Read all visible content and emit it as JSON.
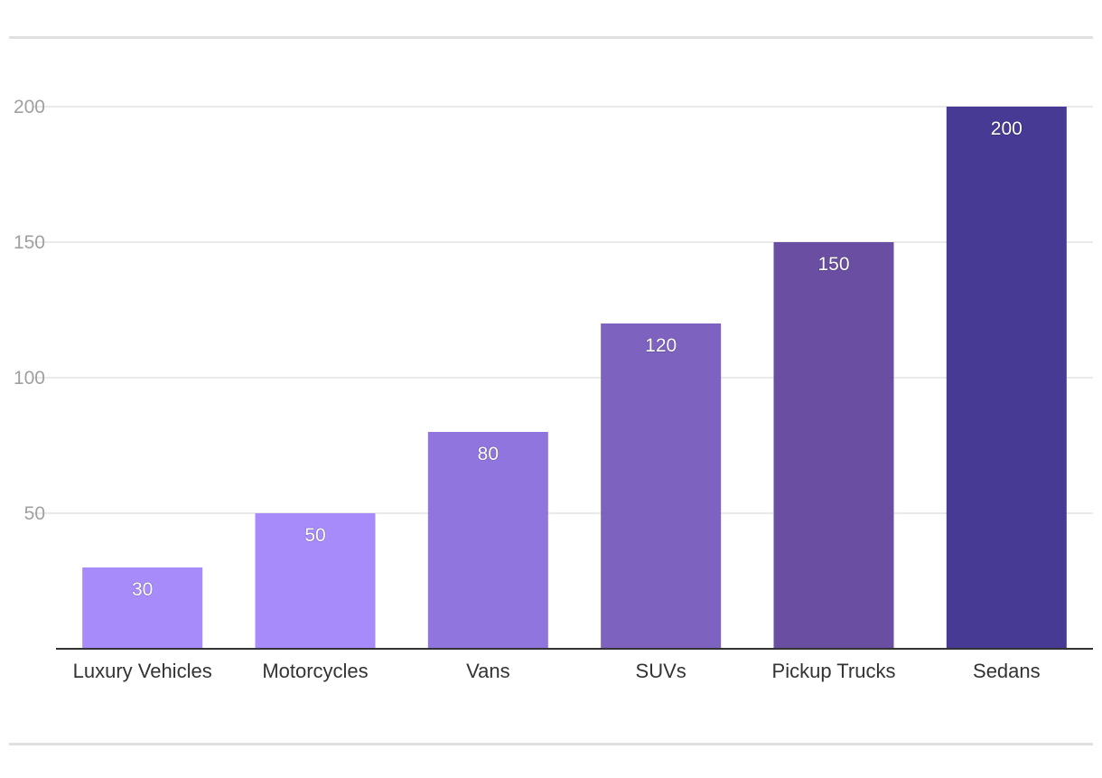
{
  "chart_data": {
    "type": "bar",
    "title": "",
    "xlabel": "",
    "ylabel": "",
    "categories": [
      "Luxury Vehicles",
      "Motorcycles",
      "Vans",
      "SUVs",
      "Pickup Trucks",
      "Sedans"
    ],
    "values": [
      30,
      50,
      80,
      120,
      150,
      200
    ],
    "ylim": [
      0,
      200
    ],
    "yticks": [
      50,
      100,
      150,
      200
    ],
    "grid": true,
    "legend": "none",
    "data_labels": [
      "30",
      "50",
      "80",
      "120",
      "150",
      "200"
    ],
    "bar_colors": [
      "#a78bfa",
      "#a78bfa",
      "#9075de",
      "#7d62bf",
      "#6a4ea1",
      "#473a94"
    ]
  },
  "colors": {
    "gridline": "#e4e4e4",
    "axis": "#333333",
    "frame_rule": "#e0e0e0"
  }
}
